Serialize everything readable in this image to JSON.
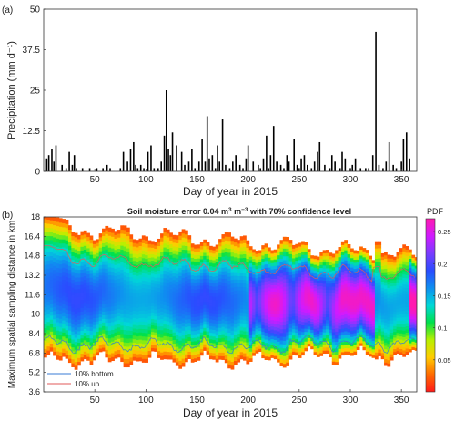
{
  "chart_data": [
    {
      "type": "bar",
      "panel_label": "(a)",
      "ylabel": "Precipitation (mm d⁻¹)",
      "xlabel": "Day of year in 2015",
      "xlim": [
        0,
        365
      ],
      "ylim": [
        0,
        50
      ],
      "xticks": [
        50,
        100,
        150,
        200,
        250,
        300,
        350
      ],
      "yticks": [
        0,
        12.5,
        25,
        37.5,
        50
      ],
      "ytick_labels": [
        "0",
        "12.5",
        "25",
        "37.5",
        "50"
      ],
      "bar_color": "#000000",
      "series": [
        {
          "days": [
            3,
            5,
            8,
            10,
            12,
            18,
            22,
            25,
            28,
            30,
            32,
            38,
            45,
            52,
            58,
            62,
            65,
            75,
            78,
            82,
            85,
            88,
            90,
            92,
            95,
            98,
            102,
            105,
            108,
            112,
            115,
            118,
            120,
            122,
            124,
            126,
            130,
            135,
            138,
            142,
            145,
            148,
            152,
            155,
            158,
            160,
            162,
            165,
            168,
            170,
            172,
            175,
            178,
            182,
            185,
            188,
            192,
            195,
            198,
            200,
            205,
            210,
            212,
            215,
            218,
            220,
            222,
            225,
            228,
            232,
            235,
            238,
            240,
            245,
            248,
            250,
            252,
            255,
            258,
            262,
            265,
            268,
            270,
            275,
            280,
            282,
            285,
            290,
            292,
            295,
            300,
            302,
            305,
            310,
            315,
            318,
            322,
            325,
            328,
            332,
            335,
            338,
            342,
            345,
            350,
            352,
            355,
            358
          ],
          "values": [
            4,
            5,
            7,
            3,
            8,
            2,
            1,
            6,
            2,
            5,
            1,
            1,
            1,
            1,
            1,
            2,
            1,
            1,
            6,
            3,
            7,
            9,
            2,
            1,
            2,
            1,
            6,
            8,
            1,
            1,
            3,
            11,
            25,
            7,
            5,
            12,
            8,
            6,
            2,
            3,
            7,
            1,
            3,
            10,
            3,
            17,
            4,
            5,
            1,
            8,
            3,
            16,
            2,
            1,
            3,
            5,
            2,
            1,
            4,
            8,
            3,
            2,
            1,
            4,
            11,
            1,
            5,
            14,
            3,
            2,
            1,
            5,
            3,
            10,
            2,
            1,
            4,
            5,
            2,
            1,
            3,
            6,
            9,
            2,
            1,
            5,
            3,
            1,
            6,
            4,
            1,
            2,
            4,
            1,
            1,
            1,
            5,
            43,
            2,
            1,
            3,
            9,
            2,
            1,
            3,
            10,
            12,
            4
          ]
        }
      ]
    },
    {
      "type": "heatmap",
      "panel_label": "(b)",
      "title": "Soil moisture error 0.04 m³ m⁻³ with 70% confidence level",
      "title_parts": {
        "pre": "Soil moisture error 0.04 m",
        "sup1": "3",
        "mid": " m",
        "sup2": "−3",
        "post": " with 70% confidence level"
      },
      "ylabel": "Maximum spatial sampling distance in km",
      "xlabel": "Day of year in 2015",
      "xlim": [
        0,
        365
      ],
      "ylim": [
        3.6,
        18
      ],
      "xticks": [
        50,
        100,
        150,
        200,
        250,
        300,
        350
      ],
      "yticks": [
        3.6,
        5.2,
        6.8,
        8.4,
        10,
        11.6,
        13.2,
        14.8,
        16.4,
        18
      ],
      "ytick_labels": [
        "3.6",
        "5.2",
        "6.8",
        "8.4",
        "10",
        "11.6",
        "13.2",
        "14.8",
        "16.4",
        "18"
      ],
      "colorbar": {
        "label": "PDF",
        "range": [
          0,
          0.27
        ],
        "ticks": [
          0.05,
          0.1,
          0.15,
          0.2,
          0.25
        ],
        "tick_labels": [
          "0.05",
          "0.1",
          "0.15",
          "0.2",
          "0.25"
        ],
        "colors": [
          "#ff1a1a",
          "#ff6a00",
          "#ffcc00",
          "#b8f000",
          "#00e04a",
          "#00d8d8",
          "#0f8ff0",
          "#2a4cff",
          "#7a3cff",
          "#d11aff",
          "#ff1ab0"
        ]
      },
      "legend": {
        "placement": "lower-left",
        "entries": [
          {
            "label": "10% bottom",
            "color": "#3a7bd5"
          },
          {
            "label": "10% up",
            "color": "#e05a5a"
          }
        ]
      }
    }
  ]
}
